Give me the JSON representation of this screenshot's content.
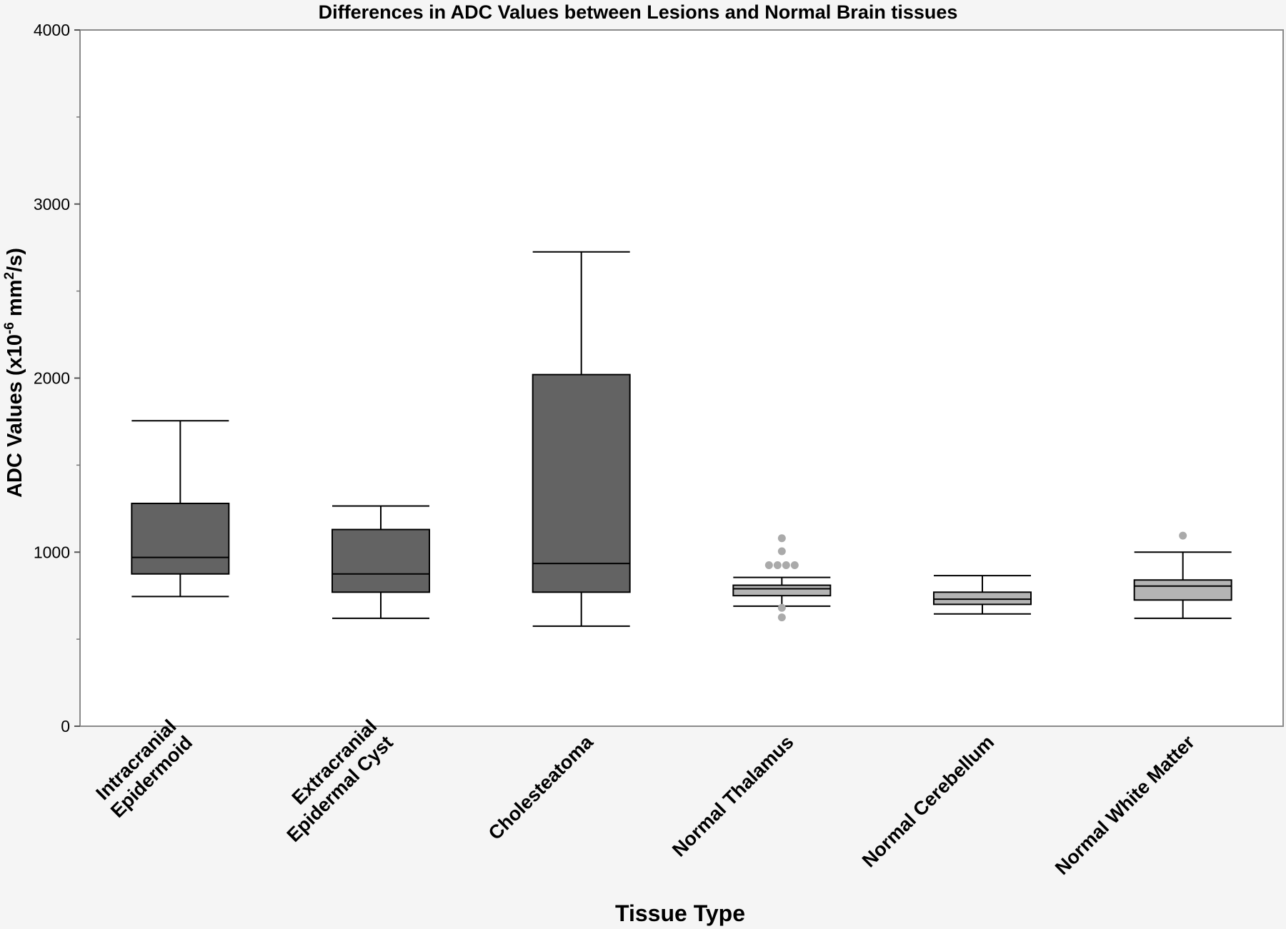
{
  "chart_data": {
    "type": "boxplot",
    "title": "Differences in ADC Values between Lesions and Normal Brain tissues",
    "xlabel": "Tissue Type",
    "ylabel": {
      "prefix": "ADC Values (x10",
      "exp1": "-6",
      "mid": " mm",
      "exp2": "2",
      "suffix": "/s)"
    },
    "ylim": [
      0,
      4000
    ],
    "y_ticks": [
      0,
      1000,
      2000,
      3000,
      4000
    ],
    "y_minor_ticks": [
      500,
      1500,
      2500,
      3500
    ],
    "grid": false,
    "categories": [
      {
        "lines": [
          "Intracranial",
          "Epidermoid"
        ]
      },
      {
        "lines": [
          "Extracranial",
          "Epidermal Cyst"
        ]
      },
      {
        "lines": [
          "Cholesteatoma"
        ]
      },
      {
        "lines": [
          "Normal Thalamus"
        ]
      },
      {
        "lines": [
          "Normal Cerebellum"
        ]
      },
      {
        "lines": [
          "Normal White Matter"
        ]
      }
    ],
    "boxes": [
      {
        "whisker_low": 745,
        "q1": 875,
        "median": 970,
        "q3": 1280,
        "whisker_high": 1755,
        "outliers": [],
        "fill": "#636363"
      },
      {
        "whisker_low": 620,
        "q1": 770,
        "median": 875,
        "q3": 1130,
        "whisker_high": 1265,
        "outliers": [],
        "fill": "#636363"
      },
      {
        "whisker_low": 575,
        "q1": 770,
        "median": 935,
        "q3": 2020,
        "whisker_high": 2725,
        "outliers": [],
        "fill": "#636363"
      },
      {
        "whisker_low": 690,
        "q1": 750,
        "median": 790,
        "q3": 810,
        "whisker_high": 855,
        "outliers": [
          1080,
          1005,
          925,
          925,
          925,
          925,
          680,
          625
        ],
        "fill": "#b4b4b4"
      },
      {
        "whisker_low": 645,
        "q1": 700,
        "median": 730,
        "q3": 770,
        "whisker_high": 865,
        "outliers": [],
        "fill": "#b4b4b4"
      },
      {
        "whisker_low": 620,
        "q1": 725,
        "median": 805,
        "q3": 840,
        "whisker_high": 1000,
        "outliers": [
          1095
        ],
        "fill": "#b4b4b4"
      }
    ],
    "colors": {
      "outlier": "#aaaaaa",
      "axis": "#888888",
      "line": "#000000"
    }
  }
}
